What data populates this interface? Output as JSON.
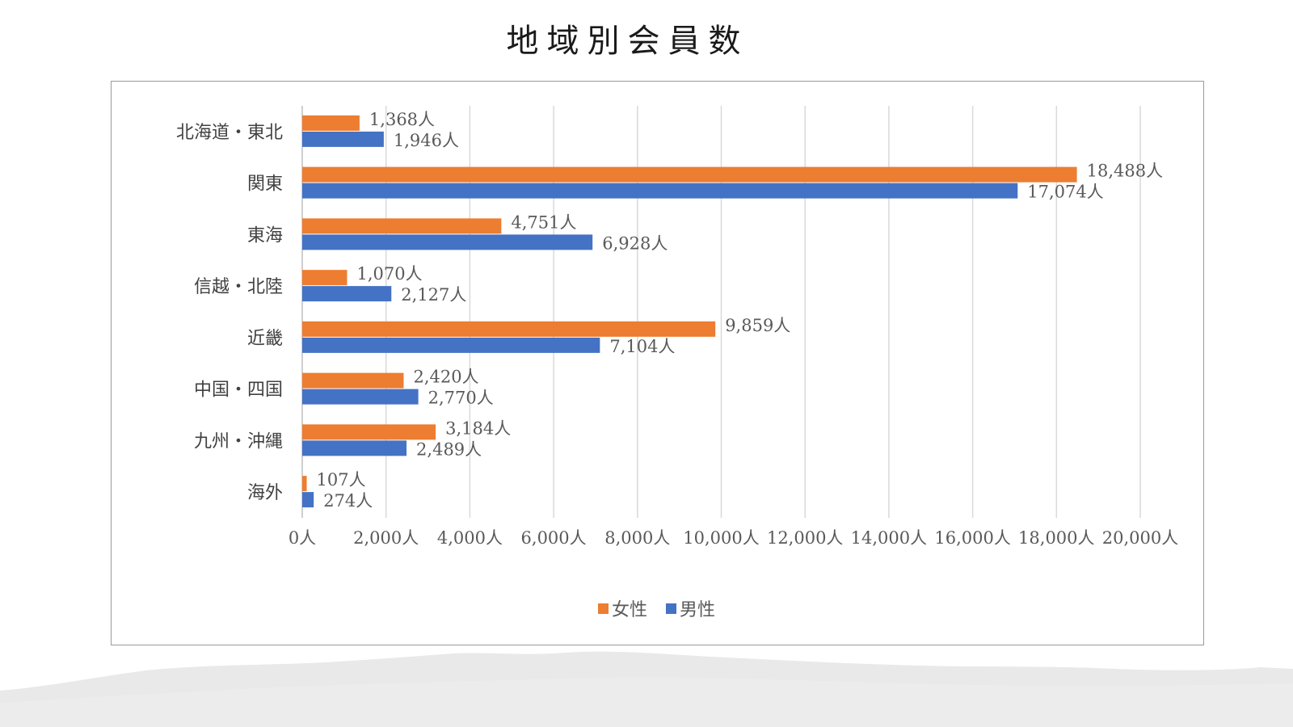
{
  "title": "地域別会員数",
  "chart_data": {
    "type": "bar",
    "orientation": "horizontal",
    "title": "",
    "xlabel": "",
    "ylabel": "",
    "xlim": [
      0,
      20000
    ],
    "x_ticks": [
      0,
      2000,
      4000,
      6000,
      8000,
      10000,
      12000,
      14000,
      16000,
      18000,
      20000
    ],
    "tick_labels": [
      "0人",
      "2,000人",
      "4,000人",
      "6,000人",
      "8,000人",
      "10,000人",
      "12,000人",
      "14,000人",
      "16,000人",
      "18,000人",
      "20,000人"
    ],
    "grid": true,
    "legend": "bottom",
    "categories": [
      "北海道・東北",
      "関東",
      "東海",
      "信越・北陸",
      "近畿",
      "中国・四国",
      "九州・沖縄",
      "海外"
    ],
    "series": [
      {
        "name": "女性",
        "color": "#ED7D31",
        "values": [
          1368,
          18488,
          4751,
          1070,
          9859,
          2420,
          3184,
          107
        ],
        "labels": [
          "1,368人",
          "18,488人",
          "4,751人",
          "1,070人",
          "9,859人",
          "2,420人",
          "3,184人",
          "107人"
        ]
      },
      {
        "name": "男性",
        "color": "#4472C4",
        "values": [
          1946,
          17074,
          6928,
          2127,
          7104,
          2770,
          2489,
          274
        ],
        "labels": [
          "1,946人",
          "17,074人",
          "6,928人",
          "2,127人",
          "7,104人",
          "2,770人",
          "2,489人",
          "274人"
        ]
      }
    ]
  }
}
